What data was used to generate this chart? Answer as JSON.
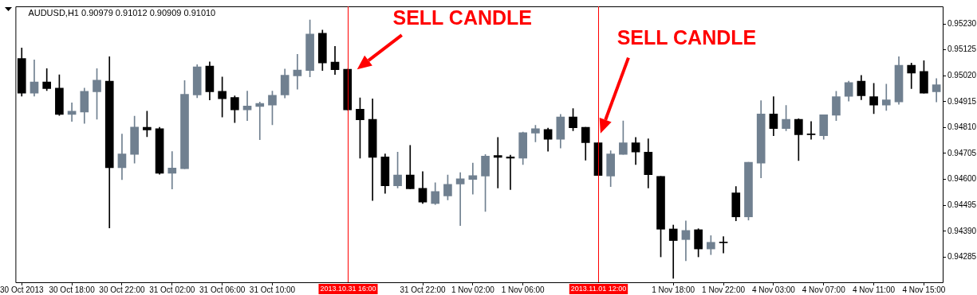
{
  "chart_data": {
    "type": "candlestick",
    "title": "AUDUSD,H1 0.90979 0.91012 0.90909 0.91010",
    "categories": [
      "30 Oct 2013",
      null,
      null,
      null,
      "30 Oct 18:00",
      null,
      null,
      null,
      "30 Oct 22:00",
      null,
      null,
      null,
      "31 Oct 02:00",
      null,
      null,
      null,
      "31 Oct 06:00",
      null,
      null,
      null,
      "31 Oct 10:00",
      null,
      null,
      null,
      null,
      null,
      "2013.10.31 16:00",
      null,
      null,
      null,
      null,
      null,
      "31 Oct 22:00",
      null,
      null,
      null,
      "1 Nov 02:00",
      null,
      null,
      null,
      "1 Nov 06:00",
      null,
      null,
      null,
      null,
      null,
      "2013.11.01 12:00",
      null,
      null,
      null,
      null,
      null,
      "1 Nov 18:00",
      null,
      null,
      null,
      "1 Nov 22:00",
      null,
      null,
      null,
      "4 Nov 03:00",
      null,
      null,
      null,
      "4 Nov 07:00",
      null,
      null,
      null,
      "4 Nov 11:00",
      null,
      null,
      null,
      "4 Nov 15:00",
      null
    ],
    "ohlc": [
      [
        0.9509,
        0.95132,
        0.94937,
        0.94949
      ],
      [
        0.94949,
        0.95084,
        0.94937,
        0.94995
      ],
      [
        0.94995,
        0.95049,
        0.9496,
        0.94968
      ],
      [
        0.9497,
        0.95024,
        0.94859,
        0.94863
      ],
      [
        0.94863,
        0.9491,
        0.94835,
        0.94876
      ],
      [
        0.94873,
        0.9497,
        0.94827,
        0.94957
      ],
      [
        0.94955,
        0.95049,
        0.94844,
        0.95002
      ],
      [
        0.94998,
        0.95097,
        0.94403,
        0.94647
      ],
      [
        0.94647,
        0.94784,
        0.94599,
        0.94703
      ],
      [
        0.94701,
        0.94856,
        0.94666,
        0.94812
      ],
      [
        0.94811,
        0.94876,
        0.94773,
        0.948
      ],
      [
        0.94805,
        0.94811,
        0.94621,
        0.94625
      ],
      [
        0.94625,
        0.94713,
        0.94561,
        0.94646
      ],
      [
        0.94643,
        0.95,
        0.94643,
        0.94945
      ],
      [
        0.94942,
        0.95065,
        0.94931,
        0.95056
      ],
      [
        0.95059,
        0.95076,
        0.94922,
        0.94955
      ],
      [
        0.94957,
        0.95015,
        0.94853,
        0.94927
      ],
      [
        0.94932,
        0.94938,
        0.9483,
        0.94882
      ],
      [
        0.94882,
        0.94958,
        0.94838,
        0.94897
      ],
      [
        0.94895,
        0.94913,
        0.94761,
        0.94908
      ],
      [
        0.94901,
        0.94958,
        0.94821,
        0.94941
      ],
      [
        0.94942,
        0.95047,
        0.9493,
        0.95022
      ],
      [
        0.95019,
        0.95107,
        0.94965,
        0.95043
      ],
      [
        0.95041,
        0.95246,
        0.95015,
        0.95189
      ],
      [
        0.95192,
        0.95205,
        0.95041,
        0.95072
      ],
      [
        0.95075,
        0.95139,
        0.95025,
        0.95044
      ],
      [
        0.95046,
        0.95046,
        0.94882,
        0.94882
      ],
      [
        0.94884,
        0.9493,
        0.94686,
        0.94841
      ],
      [
        0.94843,
        0.94926,
        0.94514,
        0.94689
      ],
      [
        0.94691,
        0.94703,
        0.94543,
        0.94574
      ],
      [
        0.94574,
        0.9471,
        0.94565,
        0.94618
      ],
      [
        0.94618,
        0.94738,
        0.94562,
        0.94562
      ],
      [
        0.94564,
        0.94631,
        0.94502,
        0.94508
      ],
      [
        0.94502,
        0.94586,
        0.94498,
        0.94551
      ],
      [
        0.94533,
        0.94618,
        0.94517,
        0.9458
      ],
      [
        0.94581,
        0.94627,
        0.94413,
        0.94602
      ],
      [
        0.946,
        0.94666,
        0.9454,
        0.94615
      ],
      [
        0.94613,
        0.94701,
        0.9447,
        0.94694
      ],
      [
        0.94697,
        0.9477,
        0.94565,
        0.94689
      ],
      [
        0.94691,
        0.94698,
        0.94559,
        0.94686
      ],
      [
        0.94686,
        0.94792,
        0.9466,
        0.94789
      ],
      [
        0.94787,
        0.94819,
        0.94752,
        0.94805
      ],
      [
        0.94802,
        0.94808,
        0.94714,
        0.94762
      ],
      [
        0.94762,
        0.94863,
        0.94727,
        0.94853
      ],
      [
        0.94853,
        0.94887,
        0.94797,
        0.94809
      ],
      [
        0.94811,
        0.94811,
        0.94678,
        0.94749
      ],
      [
        0.94748,
        0.94748,
        0.94616,
        0.94616
      ],
      [
        0.94613,
        0.94716,
        0.94571,
        0.94703
      ],
      [
        0.94701,
        0.94837,
        0.94701,
        0.94748
      ],
      [
        0.94748,
        0.9477,
        0.9466,
        0.94711
      ],
      [
        0.9471,
        0.94764,
        0.94565,
        0.94619
      ],
      [
        0.94612,
        0.94612,
        0.94286,
        0.94398
      ],
      [
        0.94399,
        0.94415,
        0.94199,
        0.94352
      ],
      [
        0.94356,
        0.94432,
        0.9427,
        0.94393
      ],
      [
        0.94396,
        0.944,
        0.94286,
        0.94318
      ],
      [
        0.94318,
        0.94372,
        0.94295,
        0.94345
      ],
      [
        0.94343,
        0.94368,
        0.94302,
        0.94343
      ],
      [
        0.94545,
        0.94571,
        0.94432,
        0.94448
      ],
      [
        0.94448,
        0.94669,
        0.94435,
        0.94669
      ],
      [
        0.94666,
        0.94919,
        0.94606,
        0.94865
      ],
      [
        0.94865,
        0.94935,
        0.94777,
        0.94806
      ],
      [
        0.94806,
        0.949,
        0.94797,
        0.94843
      ],
      [
        0.94843,
        0.94846,
        0.94676,
        0.94781
      ],
      [
        0.94781,
        0.94834,
        0.94762,
        0.94781
      ],
      [
        0.94777,
        0.94862,
        0.94762,
        0.94862
      ],
      [
        0.9486,
        0.94957,
        0.94838,
        0.94935
      ],
      [
        0.94936,
        0.94998,
        0.94917,
        0.94992
      ],
      [
        0.94998,
        0.95021,
        0.94923,
        0.94939
      ],
      [
        0.94935,
        0.94989,
        0.94866,
        0.94901
      ],
      [
        0.94901,
        0.94986,
        0.94879,
        0.94922
      ],
      [
        0.94914,
        0.95097,
        0.94904,
        0.95062
      ],
      [
        0.95062,
        0.95071,
        0.94968,
        0.95031
      ],
      [
        0.95037,
        0.95081,
        0.94949,
        0.94949
      ],
      [
        0.94955,
        0.95008,
        0.94914,
        0.94983
      ]
    ],
    "colors": [
      "#000000",
      "#708090",
      "#000000",
      "#000000",
      "#708090",
      "#708090",
      "#708090",
      "#000000",
      "#708090",
      "#708090",
      "#000000",
      "#000000",
      "#708090",
      "#708090",
      "#708090",
      "#000000",
      "#000000",
      "#000000",
      "#708090",
      "#708090",
      "#708090",
      "#708090",
      "#708090",
      "#708090",
      "#000000",
      "#000000",
      "#000000",
      "#000000",
      "#000000",
      "#000000",
      "#708090",
      "#000000",
      "#000000",
      "#708090",
      "#708090",
      "#708090",
      "#708090",
      "#708090",
      "#000000",
      "#000000",
      "#708090",
      "#708090",
      "#000000",
      "#708090",
      "#000000",
      "#000000",
      "#000000",
      "#708090",
      "#708090",
      "#000000",
      "#000000",
      "#000000",
      "#000000",
      "#708090",
      "#000000",
      "#708090",
      "#000000",
      "#000000",
      "#708090",
      "#708090",
      "#000000",
      "#708090",
      "#000000",
      "#000000",
      "#708090",
      "#708090",
      "#708090",
      "#000000",
      "#000000",
      "#708090",
      "#708090",
      "#000000",
      "#000000",
      "#708090"
    ],
    "ylim": [
      0.94183,
      0.95301
    ],
    "yticks": [
      {
        "value": 0.94285,
        "label": "0.94285"
      },
      {
        "value": 0.9439,
        "label": "0.94390"
      },
      {
        "value": 0.94495,
        "label": "0.94495"
      },
      {
        "value": 0.946,
        "label": "0.94600"
      },
      {
        "value": 0.94705,
        "label": "0.94705"
      },
      {
        "value": 0.9481,
        "label": "0.94810"
      },
      {
        "value": 0.94915,
        "label": "0.94915"
      },
      {
        "value": 0.9502,
        "label": "0.95020"
      },
      {
        "value": 0.95125,
        "label": "0.95125"
      },
      {
        "value": 0.9523,
        "label": "0.95230"
      }
    ],
    "ref_lines": [
      {
        "axis": "x",
        "value": "2013.10.31 16:00",
        "color": "#ff0000"
      },
      {
        "axis": "x",
        "value": "2013.11.01 12:00",
        "color": "#ff0000"
      }
    ],
    "annotations": [
      "SELL CANDLE",
      "SELL CANDLE"
    ]
  }
}
